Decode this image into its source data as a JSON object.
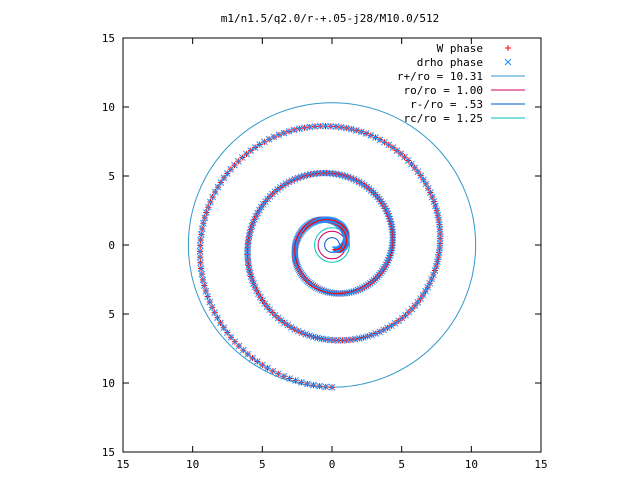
{
  "chart_data": {
    "type": "scatter",
    "title": "m1/n1.5/q2.0/r-+.05-j28/M10.0/512",
    "xlabel": "",
    "ylabel": "",
    "xlim": [
      -15,
      15
    ],
    "ylim": [
      -15,
      15
    ],
    "x_tick_values": [
      -15,
      -10,
      -5,
      0,
      5,
      10,
      15
    ],
    "x_tick_labels": [
      "15",
      "10",
      "5",
      "0",
      "5",
      "10",
      "15"
    ],
    "y_tick_values": [
      15,
      10,
      5,
      0,
      -5,
      -10,
      -15
    ],
    "y_tick_labels": [
      "15",
      "10",
      "5",
      "0",
      "5",
      "10",
      "15"
    ],
    "grid": false,
    "legend_position": "top-right",
    "spiral": {
      "center": [
        0,
        0
      ],
      "inner_radius": 0.4,
      "outer_radius": 10.31,
      "turns": 2.9,
      "points": 420
    },
    "series": [
      {
        "name": "W phase",
        "marker": "+",
        "color": "#ff0000"
      },
      {
        "name": "drho phase",
        "marker": "x",
        "color": "#1e90ff"
      }
    ],
    "circles": [
      {
        "name": "r+/ro = 10.31",
        "radius": 10.31,
        "color": "#3399cc"
      },
      {
        "name": "ro/ro = 1.00",
        "radius": 1.0,
        "color": "#cc0066"
      },
      {
        "name": "r-/ro = .53",
        "radius": 0.53,
        "color": "#0055cc"
      },
      {
        "name": "rc/ro = 1.25",
        "radius": 1.25,
        "color": "#00c0c0"
      }
    ]
  }
}
